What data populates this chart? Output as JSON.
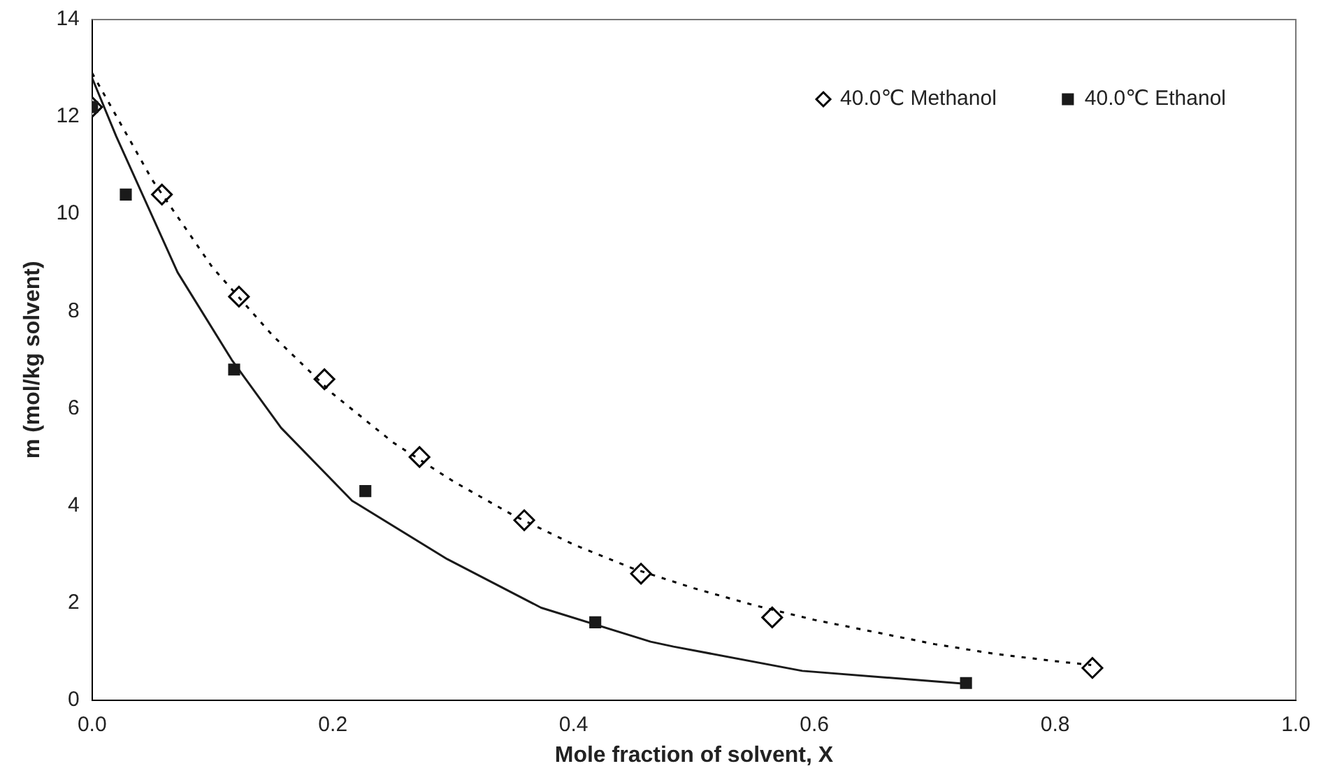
{
  "chart_data": {
    "type": "scatter",
    "xlabel": "Mole fraction of solvent, X",
    "ylabel": "m (mol/kg solvent)",
    "xlim": [
      0,
      1
    ],
    "xticks": [
      {
        "value": 0,
        "label": "0.0"
      },
      0.2,
      0.4,
      0.6,
      0.8,
      {
        "value": 1,
        "label": "1.0"
      }
    ],
    "ylim": [
      0,
      14
    ],
    "yticks": [
      0,
      2,
      4,
      6,
      8,
      10,
      12,
      14
    ],
    "grid": false,
    "legend": "top right",
    "series": [
      {
        "name": "40.0℃ Methanol",
        "color": "#000000",
        "marker": "diamond",
        "x": [
          0,
          0.058,
          0.122,
          0.193,
          0.272,
          0.359,
          0.456,
          0.565,
          0.831
        ],
        "values": [
          12.2,
          10.4,
          8.3,
          6.6,
          5.0,
          3.7,
          2.6,
          1.7,
          0.66
        ]
      },
      {
        "name": "40.0℃ Ethanol",
        "color": "#1a1a1a",
        "marker": "square",
        "x": [
          0,
          0.028,
          0.118,
          0.227,
          0.418,
          0.726
        ],
        "values": [
          12.2,
          10.4,
          6.8,
          4.3,
          1.6,
          0.35
        ]
      },
      {
        "type": "line",
        "color": "#000000",
        "marker": "none",
        "line_style": "dotted",
        "x": [
          0,
          0.05,
          0.1,
          0.15,
          0.2,
          0.25,
          0.3,
          0.35,
          0.4,
          0.45,
          0.5,
          0.55,
          0.6,
          0.65,
          0.7,
          0.75,
          0.8,
          0.83
        ],
        "values": [
          12.9,
          10.7,
          8.9,
          7.5,
          6.3,
          5.3,
          4.5,
          3.8,
          3.2,
          2.7,
          2.3,
          1.95,
          1.65,
          1.4,
          1.15,
          0.95,
          0.8,
          0.72
        ]
      },
      {
        "type": "line",
        "color": "#1a1a1a",
        "marker": "none",
        "line_style": "solid",
        "x": [
          0,
          0.02,
          0.071,
          0.116,
          0.157,
          0.216,
          0.295,
          0.373,
          0.464,
          0.483,
          0.59,
          0.723
        ],
        "values": [
          12.8,
          11.6,
          8.8,
          7.0,
          5.6,
          4.1,
          2.9,
          1.9,
          1.2,
          1.1,
          0.6,
          0.34
        ]
      }
    ]
  }
}
